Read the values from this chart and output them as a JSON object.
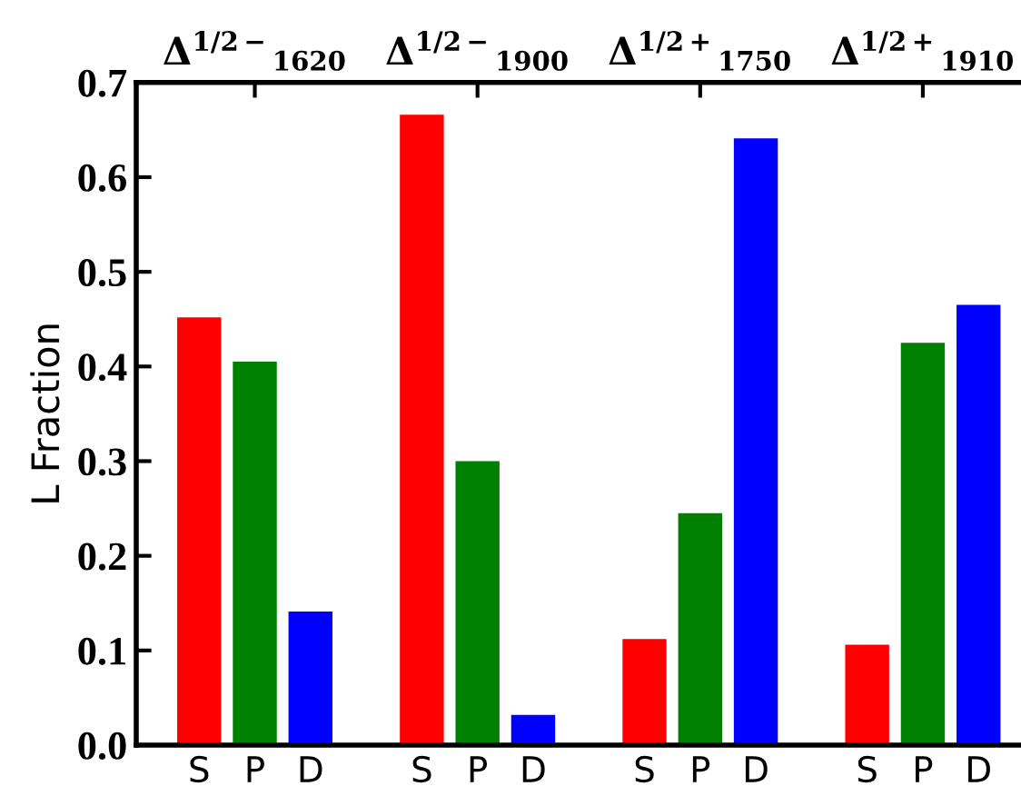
{
  "chart_data": {
    "type": "bar",
    "ylabel": "L Fraction",
    "categories": [
      "S",
      "P",
      "D",
      null,
      "S",
      "P",
      "D",
      null,
      "S",
      "P",
      "D",
      null,
      "S",
      "P",
      "D"
    ],
    "values": [
      0.452,
      0.405,
      0.141,
      null,
      0.666,
      0.3,
      0.032,
      null,
      0.112,
      0.245,
      0.641,
      null,
      0.106,
      0.425,
      0.465
    ],
    "colors": [
      "#ff0000",
      "#008000",
      "#0000ff",
      null,
      "#ff0000",
      "#008000",
      "#0000ff",
      null,
      "#ff0000",
      "#008000",
      "#0000ff",
      null,
      "#ff0000",
      "#008000",
      "#0000ff"
    ],
    "annotations": [
      "Δ$^{1/2−}$$_{1620}$",
      "Δ$^{1/2−}$$_{1900}$",
      "Δ$^{1/2+}$$_{1750}$",
      "Δ$^{1/2+}$$_{1910}$"
    ],
    "ylim": [
      0,
      0.7
    ],
    "yticks": [
      {
        "value": 0,
        "label": "0.0"
      },
      0.1,
      0.2,
      0.3,
      0.4,
      0.5,
      0.6,
      0.7
    ],
    "grid": false,
    "legend": false
  }
}
